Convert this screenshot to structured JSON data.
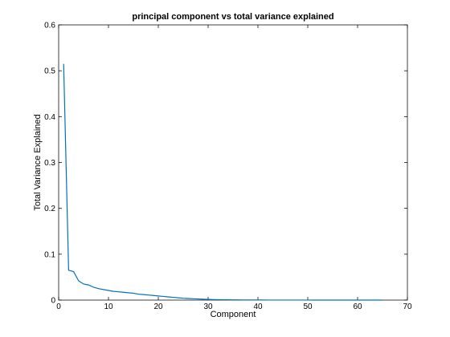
{
  "chart_data": {
    "type": "line",
    "title": "principal component vs total variance explained",
    "xlabel": "Component",
    "ylabel": "Total Variance Explained",
    "xlim": [
      0,
      70
    ],
    "ylim": [
      0,
      0.6
    ],
    "xticks": [
      0,
      10,
      20,
      30,
      40,
      50,
      60,
      70
    ],
    "yticks": [
      0,
      0.1,
      0.2,
      0.3,
      0.4,
      0.5,
      0.6
    ],
    "xtick_labels": [
      "0",
      "10",
      "20",
      "30",
      "40",
      "50",
      "60",
      "70"
    ],
    "ytick_labels": [
      "0",
      "0.1",
      "0.2",
      "0.3",
      "0.4",
      "0.5",
      "0.6"
    ],
    "grid": false,
    "series": [
      {
        "color": "#0072bd",
        "x": [
          1,
          2,
          3,
          4,
          5,
          6,
          7,
          8,
          9,
          10,
          11,
          12,
          13,
          14,
          15,
          16,
          17,
          18,
          19,
          20,
          21,
          22,
          23,
          24,
          25,
          26,
          27,
          28,
          29,
          30,
          31,
          32,
          33,
          34,
          35,
          36,
          37,
          38,
          39,
          40,
          41,
          42,
          43,
          44,
          45,
          46,
          47,
          48,
          49,
          50,
          51,
          52,
          53,
          54,
          55,
          56,
          57,
          58,
          59,
          60,
          61,
          62,
          63,
          64,
          65
        ],
        "y": [
          0.515,
          0.065,
          0.062,
          0.042,
          0.035,
          0.033,
          0.028,
          0.025,
          0.023,
          0.021,
          0.019,
          0.018,
          0.017,
          0.016,
          0.015,
          0.013,
          0.012,
          0.011,
          0.01,
          0.009,
          0.008,
          0.007,
          0.006,
          0.005,
          0.004,
          0.0035,
          0.003,
          0.0025,
          0.002,
          0.0015,
          0.0012,
          0.001,
          0.0008,
          0.0006,
          0.0005,
          0.0004,
          0.0003,
          0.0003,
          0.0002,
          0.0002,
          0.0002,
          0.0001,
          0.0001,
          0.0001,
          0.0001,
          0.0001,
          0.0001,
          0.0001,
          0.0001,
          0.0001,
          0,
          0,
          0,
          0,
          0,
          0,
          0,
          0,
          0,
          0,
          0,
          0,
          0,
          0,
          0
        ]
      }
    ]
  }
}
